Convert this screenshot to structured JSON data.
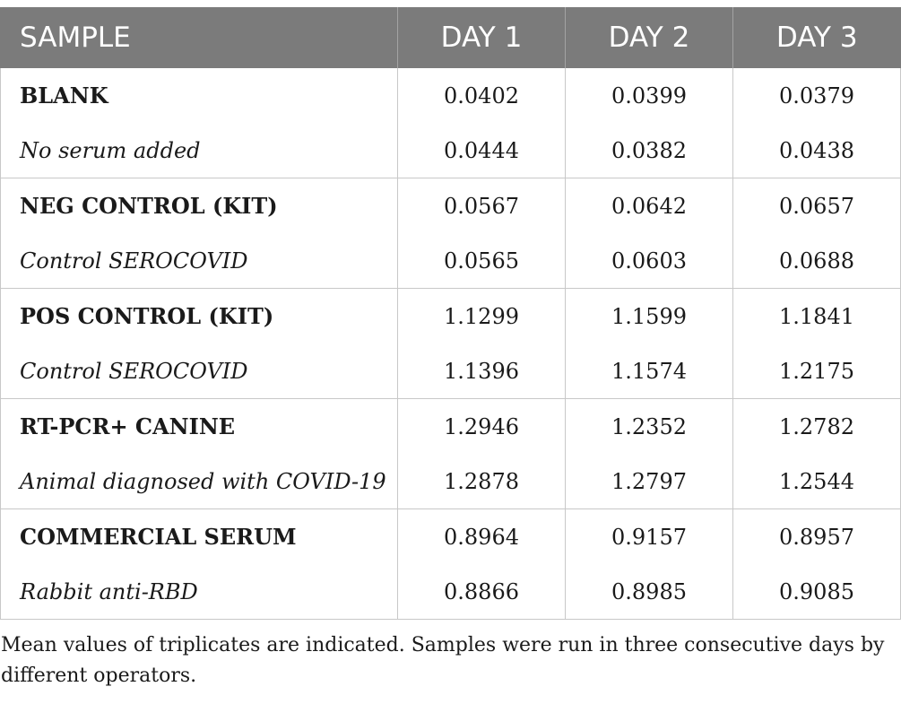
{
  "table": {
    "headers": [
      "SAMPLE",
      "DAY 1",
      "DAY 2",
      "DAY 3"
    ],
    "groups": [
      {
        "name": "BLANK",
        "subtitle": "No serum added",
        "row1": [
          "0.0402",
          "0.0399",
          "0.0379"
        ],
        "row2": [
          "0.0444",
          "0.0382",
          "0.0438"
        ]
      },
      {
        "name": "NEG CONTROL (KIT)",
        "subtitle": "Control SEROCOVID",
        "row1": [
          "0.0567",
          "0.0642",
          "0.0657"
        ],
        "row2": [
          "0.0565",
          "0.0603",
          "0.0688"
        ]
      },
      {
        "name": "POS CONTROL (KIT)",
        "subtitle": "Control SEROCOVID",
        "row1": [
          "1.1299",
          "1.1599",
          "1.1841"
        ],
        "row2": [
          "1.1396",
          "1.1574",
          "1.2175"
        ]
      },
      {
        "name": "RT-PCR+ CANINE",
        "subtitle": "Animal diagnosed with COVID-19",
        "row1": [
          "1.2946",
          "1.2352",
          "1.2782"
        ],
        "row2": [
          "1.2878",
          "1.2797",
          "1.2544"
        ]
      },
      {
        "name": "COMMERCIAL SERUM",
        "subtitle": "Rabbit anti-RBD",
        "row1": [
          "0.8964",
          "0.9157",
          "0.8957"
        ],
        "row2": [
          "0.8866",
          "0.8985",
          "0.9085"
        ]
      }
    ]
  },
  "footnote": "Mean values of triplicates are indicated. Samples were run in three consecutive days by different operators.",
  "colors": {
    "header_bg": "#7b7b7b",
    "header_text": "#ffffff",
    "grid": "#c8c8c8"
  }
}
